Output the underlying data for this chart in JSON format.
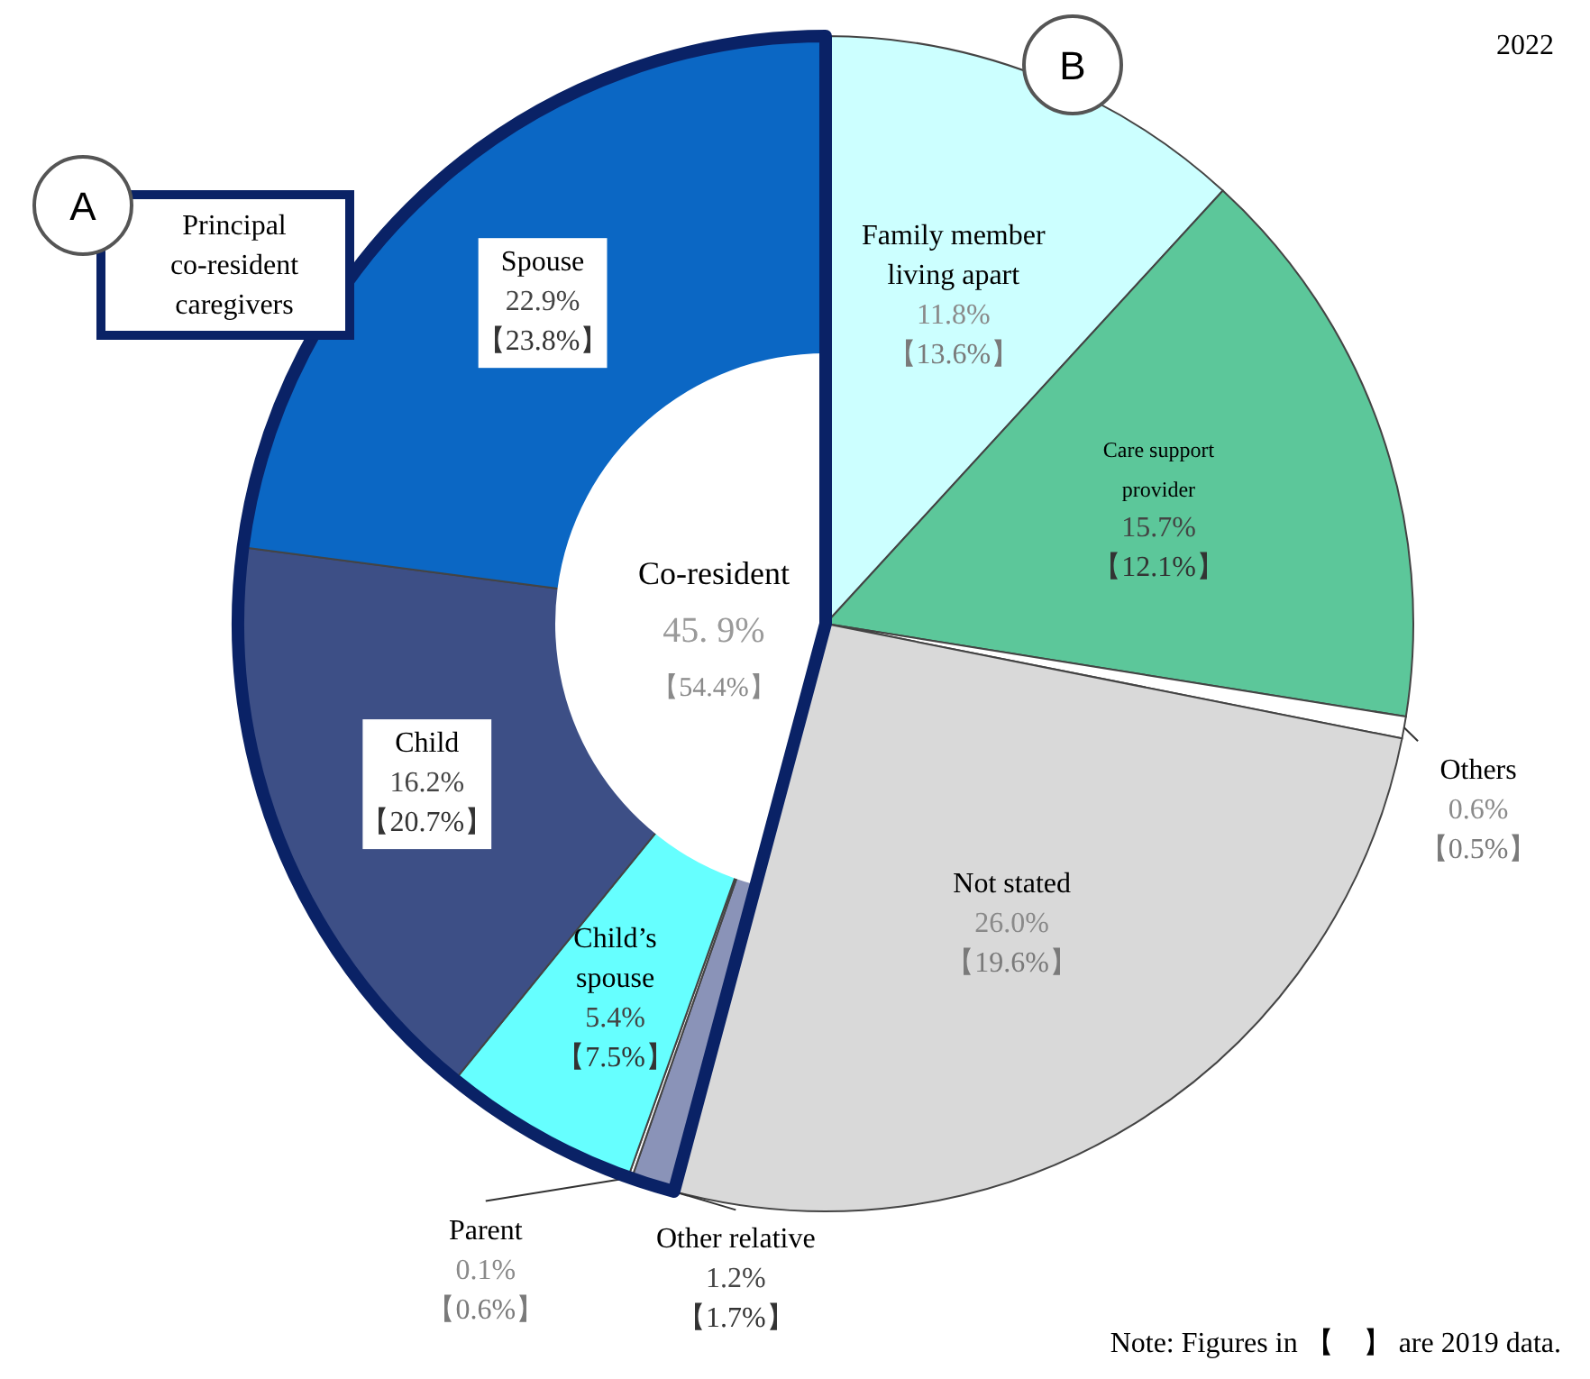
{
  "chart_data": {
    "type": "pie",
    "categories": [
      "Family member living apart",
      "Care support provider",
      "Others",
      "Not stated",
      "Other relative",
      "Parent",
      "Child’s spouse",
      "Child",
      "Spouse"
    ],
    "values": [
      11.8,
      15.7,
      0.6,
      26.0,
      1.2,
      0.1,
      5.4,
      16.2,
      22.9
    ],
    "colors": [
      "#ccffff",
      "#5cc79a",
      "#ffffff",
      "#d9d9d9",
      "#8a93b8",
      "#ffffff",
      "#66ffff",
      "#3d4f86",
      "#0b67c4"
    ],
    "value_labels": [
      "11.8%",
      "15.7%",
      "0.6%",
      "26.0%",
      "1.2%",
      "0.1%",
      "5.4%",
      "16.2%",
      "22.9%"
    ],
    "annotations": [
      "【13.6%】",
      "【12.1%】",
      "【0.5%】",
      "【19.6%】",
      "【1.7%】",
      "【0.6%】",
      "【7.5%】",
      "【20.7%】",
      "【23.8%】",
      "2022",
      "Note: Figures in 【　】 are 2019 data.",
      "Co-resident",
      "45. 9%",
      "【54.4%】",
      "Principal co-resident caregivers",
      "A",
      "B"
    ],
    "data_labels": false
  }
}
